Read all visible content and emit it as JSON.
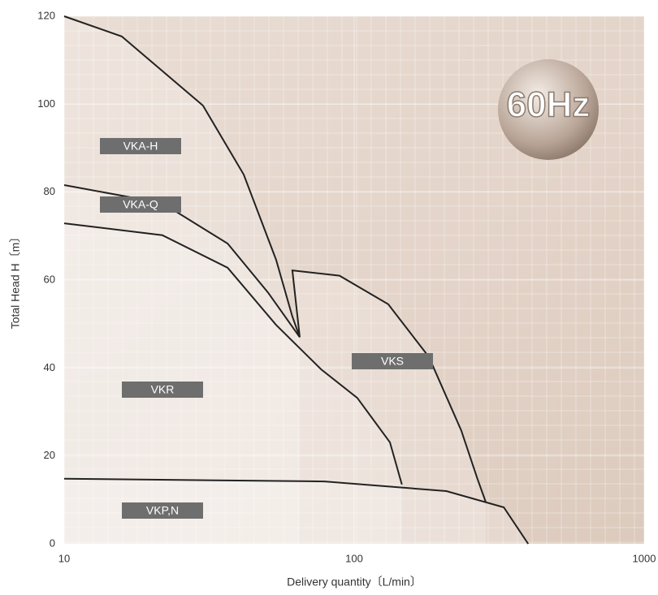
{
  "chart_data": {
    "type": "line",
    "annotation": "60Hz",
    "xlabel": "Delivery quantity〔L/min〕",
    "ylabel": "Total Head H〔m〕",
    "xscale": "log",
    "xlim": [
      10,
      1000
    ],
    "xticks": [
      10,
      100,
      1000
    ],
    "ylim": [
      0,
      120
    ],
    "yticks": [
      0,
      20,
      40,
      60,
      80,
      100,
      120
    ],
    "grid": true,
    "series": [
      {
        "name": "VKA-H",
        "color": "#222222",
        "x": [
          10,
          15.8,
          30.1,
          41.6,
          53.8,
          61.2,
          64.9
        ],
        "values": [
          120,
          115.4,
          99.7,
          84,
          64.6,
          51.7,
          47
        ]
      },
      {
        "name": "VKA-Q",
        "color": "#222222",
        "x": [
          10,
          21.8,
          36.6,
          50.4,
          64.9
        ],
        "values": [
          81.6,
          77.5,
          68.3,
          57.2,
          47
        ]
      },
      {
        "name": "VKR",
        "color": "#222222",
        "x": [
          10,
          21.8,
          36.6,
          53.8,
          76.9,
          102.5,
          132.8,
          146
        ],
        "values": [
          72.9,
          70.2,
          62.8,
          49.8,
          39.7,
          33.2,
          23.1,
          13.5
        ]
      },
      {
        "name": "VKS",
        "color": "#222222",
        "x": [
          64.9,
          61.2,
          89,
          131,
          181,
          234,
          266,
          284
        ],
        "values": [
          47,
          62.2,
          61,
          54.5,
          42.5,
          25.8,
          14.8,
          9.6
        ]
      },
      {
        "name": "VKP,N",
        "color": "#222222",
        "x": [
          10,
          79,
          208,
          328,
          398
        ],
        "values": [
          14.8,
          14.2,
          12,
          8.3,
          0
        ]
      }
    ]
  }
}
